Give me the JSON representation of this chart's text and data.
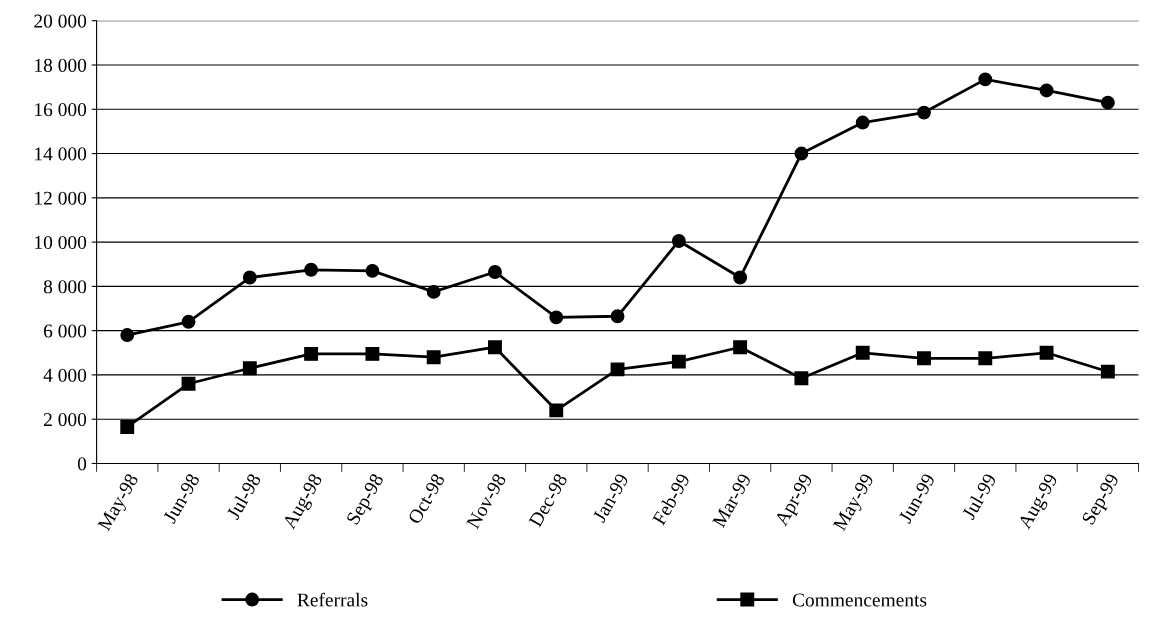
{
  "chart_data": {
    "type": "line",
    "categories": [
      "May-98",
      "Jun-98",
      "Jul-98",
      "Aug-98",
      "Sep-98",
      "Oct-98",
      "Nov-98",
      "Dec-98",
      "Jan-99",
      "Feb-99",
      "Mar-99",
      "Apr-99",
      "May-99",
      "Jun-99",
      "Jul-99",
      "Aug-99",
      "Sep-99"
    ],
    "series": [
      {
        "name": "Referrals",
        "color": "#000000",
        "marker": "circle",
        "values": [
          5800,
          6400,
          8400,
          8750,
          8700,
          7750,
          8650,
          6600,
          6650,
          10050,
          8400,
          14000,
          15400,
          15850,
          17350,
          16850,
          16300
        ]
      },
      {
        "name": "Commencements",
        "color": "#000000",
        "marker": "square",
        "values": [
          1650,
          3600,
          4300,
          4950,
          4950,
          4800,
          5250,
          2400,
          4250,
          4600,
          5250,
          3850,
          5000,
          4750,
          4750,
          5000,
          4150
        ]
      }
    ],
    "ylim": [
      0,
      20000
    ],
    "yticks": [
      0,
      {
        "value": 2000,
        "label": "2 000"
      },
      {
        "value": 4000,
        "label": "4 000"
      },
      {
        "value": 6000,
        "label": "6 000"
      },
      {
        "value": 8000,
        "label": "8 000"
      },
      {
        "value": 10000,
        "label": "10 000"
      },
      {
        "value": 12000,
        "label": "12 000"
      },
      {
        "value": 14000,
        "label": "14 000"
      },
      {
        "value": 16000,
        "label": "16 000"
      },
      {
        "value": 18000,
        "label": "18 000"
      },
      {
        "value": 20000,
        "label": "20 000"
      }
    ],
    "grid": "y",
    "legend": "bottom",
    "line_style": "solid"
  }
}
